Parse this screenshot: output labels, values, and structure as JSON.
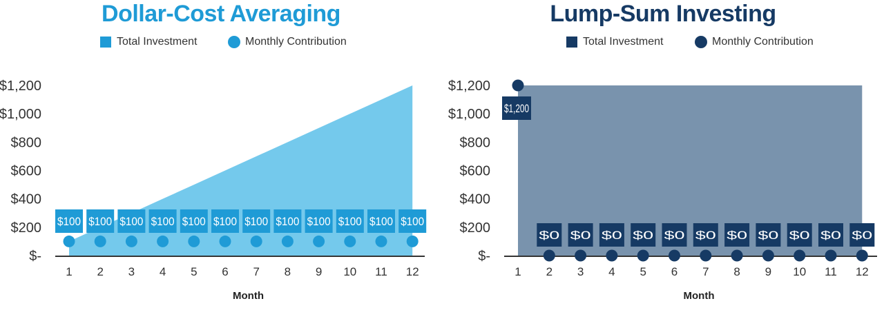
{
  "chart_data": [
    {
      "type": "area",
      "title": "Dollar-Cost Averaging",
      "xlabel": "Month",
      "ylabel": "",
      "x": [
        1,
        2,
        3,
        4,
        5,
        6,
        7,
        8,
        9,
        10,
        11,
        12
      ],
      "ytick_labels": [
        "$-",
        "$200",
        "$400",
        "$600",
        "$800",
        "$1,000",
        "$1,200"
      ],
      "ylim": [
        0,
        1200
      ],
      "series": [
        {
          "name": "Total Investment",
          "type": "area",
          "values": [
            100,
            200,
            300,
            400,
            500,
            600,
            700,
            800,
            900,
            1000,
            1100,
            1200
          ]
        },
        {
          "name": "Monthly Contribution",
          "type": "scatter",
          "values": [
            100,
            100,
            100,
            100,
            100,
            100,
            100,
            100,
            100,
            100,
            100,
            100
          ],
          "data_labels": [
            "$100",
            "$100",
            "$100",
            "$100",
            "$100",
            "$100",
            "$100",
            "$100",
            "$100",
            "$100",
            "$100",
            "$100"
          ]
        }
      ],
      "colors": {
        "area": "#74c9ec",
        "marker": "#1f9bd6",
        "label_bg": "#1f9bd6",
        "title": "#1f9bd6"
      },
      "legend_position": "top"
    },
    {
      "type": "area",
      "title": "Lump-Sum Investing",
      "xlabel": "Month",
      "ylabel": "",
      "x": [
        1,
        2,
        3,
        4,
        5,
        6,
        7,
        8,
        9,
        10,
        11,
        12
      ],
      "ytick_labels": [
        "$-",
        "$200",
        "$400",
        "$600",
        "$800",
        "$1,000",
        "$1,200"
      ],
      "ylim": [
        0,
        1200
      ],
      "series": [
        {
          "name": "Total Investment",
          "type": "area",
          "values": [
            1200,
            1200,
            1200,
            1200,
            1200,
            1200,
            1200,
            1200,
            1200,
            1200,
            1200,
            1200
          ]
        },
        {
          "name": "Monthly Contribution",
          "type": "scatter",
          "values": [
            1200,
            0,
            0,
            0,
            0,
            0,
            0,
            0,
            0,
            0,
            0,
            0
          ],
          "data_labels": [
            "$1,200",
            "$0",
            "$0",
            "$0",
            "$0",
            "$0",
            "$0",
            "$0",
            "$0",
            "$0",
            "$0",
            "$0"
          ]
        }
      ],
      "colors": {
        "area": "#7993ad",
        "marker": "#163a64",
        "label_bg": "#163a64",
        "title": "#163a64"
      },
      "legend_position": "top"
    }
  ]
}
